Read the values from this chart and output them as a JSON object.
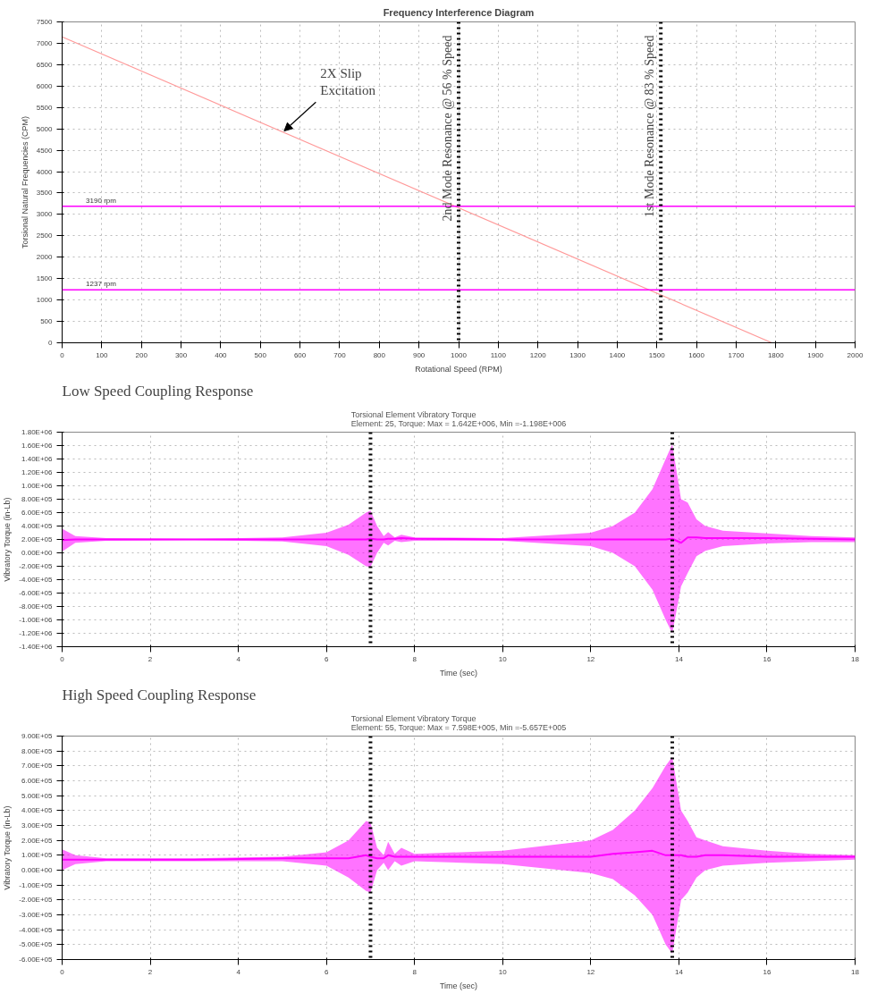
{
  "chart_data": [
    {
      "type": "line",
      "title": "Frequency Interference Diagram",
      "xlabel": "Rotational Speed (RPM)",
      "ylabel": "Torsional Natural Frequencies (CPM)",
      "series": [
        {
          "color": "#ff9999",
          "x": [
            0,
            1790
          ],
          "values": [
            7150,
            0
          ]
        }
      ],
      "xlim": [
        0,
        2000
      ],
      "ylim": [
        0,
        7500
      ],
      "xticks": [
        0,
        100,
        200,
        300,
        400,
        500,
        600,
        700,
        800,
        900,
        1000,
        1100,
        1200,
        1300,
        1400,
        1500,
        1600,
        1700,
        1800,
        1900,
        2000
      ],
      "yticks": [
        0,
        500,
        1000,
        1500,
        2000,
        2500,
        3000,
        3500,
        4000,
        4500,
        5000,
        5500,
        6000,
        6500,
        7000,
        7500
      ],
      "ref_lines": [
        {
          "axis": "y",
          "value": 3190,
          "label": "3190 rpm",
          "color": "#ff00ff"
        },
        {
          "axis": "y",
          "value": 1237,
          "label": "1237 rpm",
          "color": "#ff00ff"
        },
        {
          "axis": "x",
          "value": 1000,
          "label": "2nd Mode Resonance @ 56 % Speed",
          "color": "#000000",
          "line_style": "dotted"
        },
        {
          "axis": "x",
          "value": 1510,
          "label": "1st Mode Resonance @ 83 % Speed",
          "color": "#000000",
          "line_style": "dotted"
        }
      ],
      "annotations": [
        {
          "text": "2X Slip\nExcitation",
          "x": 560,
          "y": 4950
        }
      ],
      "grid": true
    },
    {
      "type": "line",
      "title": "Low Speed Coupling Response",
      "subtitle": "Torsional Element Vibratory Torque\nElement: 25, Torque: Max = 1.642E+006, Min =-1.198E+006",
      "xlabel": "Time (sec)",
      "ylabel": "Vibratory Torque (in-Lb)",
      "series": [
        {
          "color": "#ff00ff",
          "x": [
            0,
            0.3,
            1,
            3,
            5,
            6,
            6.5,
            6.9,
            7.0,
            7.15,
            7.3,
            7.4,
            7.55,
            7.7,
            8,
            10,
            12,
            12.5,
            13,
            13.4,
            13.7,
            13.85,
            14.05,
            14.2,
            14.4,
            14.6,
            15,
            16,
            17,
            18
          ],
          "upper": [
            360000,
            250000,
            220000,
            210000,
            230000,
            300000,
            420000,
            600000,
            630000,
            400000,
            250000,
            310000,
            230000,
            270000,
            230000,
            220000,
            300000,
            400000,
            600000,
            950000,
            1400000,
            1620000,
            800000,
            750000,
            500000,
            400000,
            330000,
            290000,
            250000,
            230000
          ],
          "lower": [
            20000,
            150000,
            180000,
            190000,
            170000,
            100000,
            -30000,
            -200000,
            -210000,
            0,
            150000,
            110000,
            180000,
            160000,
            180000,
            180000,
            100000,
            0,
            -200000,
            -550000,
            -1000000,
            -1200000,
            -500000,
            -300000,
            -50000,
            30000,
            100000,
            140000,
            160000,
            160000
          ],
          "values": [
            190000,
            200000,
            200000,
            200000,
            200000,
            200000,
            200000,
            200000,
            210000,
            200000,
            200000,
            210000,
            210000,
            220000,
            210000,
            200000,
            200000,
            200000,
            200000,
            200000,
            200000,
            210000,
            150000,
            230000,
            230000,
            220000,
            220000,
            220000,
            210000,
            200000
          ]
        }
      ],
      "xlim": [
        0,
        18
      ],
      "ylim": [
        -1400000,
        1800000
      ],
      "xticks": [
        0,
        2,
        4,
        6,
        8,
        10,
        12,
        14,
        16,
        18
      ],
      "yticks": [
        {
          "value": -1400000,
          "label": "-1.40E+06"
        },
        {
          "value": -1200000,
          "label": "-1.20E+06"
        },
        {
          "value": -1000000,
          "label": "-1.00E+06"
        },
        {
          "value": -800000,
          "label": "-8.00E+05"
        },
        {
          "value": -600000,
          "label": "-6.00E+05"
        },
        {
          "value": -400000,
          "label": "-4.00E+05"
        },
        {
          "value": -200000,
          "label": "-2.00E+05"
        },
        {
          "value": 0,
          "label": "0.00E+00"
        },
        {
          "value": 200000,
          "label": "2.00E+05"
        },
        {
          "value": 400000,
          "label": "4.00E+05"
        },
        {
          "value": 600000,
          "label": "6.00E+05"
        },
        {
          "value": 800000,
          "label": "8.00E+05"
        },
        {
          "value": 1000000,
          "label": "1.00E+06"
        },
        {
          "value": 1200000,
          "label": "1.20E+06"
        },
        {
          "value": 1400000,
          "label": "1.40E+06"
        },
        {
          "value": 1600000,
          "label": "1.60E+06"
        },
        {
          "value": 1800000,
          "label": "1.80E+06"
        }
      ],
      "ref_lines": [
        {
          "axis": "x",
          "value": 7.0,
          "label": null,
          "color": "#000000",
          "line_style": "dotted"
        },
        {
          "axis": "x",
          "value": 13.85,
          "label": null,
          "color": "#000000",
          "line_style": "dotted"
        }
      ],
      "grid": true
    },
    {
      "type": "line",
      "title": "High Speed Coupling Response",
      "subtitle": "Torsional Element Vibratory Torque\nElement: 55, Torque: Max = 7.598E+005, Min =-5.657E+005",
      "xlabel": "Time (sec)",
      "ylabel": "Vibratory Torque (in-Lb)",
      "series": [
        {
          "color": "#ff00ff",
          "x": [
            0,
            0.3,
            1,
            3,
            5,
            6,
            6.5,
            6.9,
            7.0,
            7.15,
            7.3,
            7.4,
            7.55,
            7.7,
            8,
            10,
            12,
            12.5,
            13,
            13.4,
            13.7,
            13.85,
            14.05,
            14.2,
            14.4,
            14.6,
            15,
            16,
            17,
            18
          ],
          "upper": [
            140000,
            100000,
            80000,
            80000,
            90000,
            120000,
            200000,
            330000,
            320000,
            150000,
            100000,
            190000,
            110000,
            150000,
            110000,
            130000,
            200000,
            270000,
            400000,
            550000,
            700000,
            760000,
            400000,
            330000,
            220000,
            200000,
            160000,
            130000,
            110000,
            100000
          ],
          "lower": [
            0,
            40000,
            60000,
            60000,
            60000,
            30000,
            -50000,
            -140000,
            -150000,
            0,
            50000,
            0,
            60000,
            30000,
            60000,
            40000,
            -20000,
            -60000,
            -170000,
            -300000,
            -500000,
            -560000,
            -200000,
            -150000,
            -50000,
            0,
            30000,
            50000,
            60000,
            70000
          ],
          "values": [
            70000,
            70000,
            70000,
            70000,
            80000,
            80000,
            80000,
            100000,
            90000,
            80000,
            80000,
            100000,
            90000,
            90000,
            90000,
            90000,
            90000,
            110000,
            120000,
            130000,
            100000,
            100000,
            100000,
            90000,
            90000,
            100000,
            100000,
            90000,
            90000,
            90000
          ]
        }
      ],
      "xlim": [
        0,
        18
      ],
      "ylim": [
        -600000,
        900000
      ],
      "xticks": [
        0,
        2,
        4,
        6,
        8,
        10,
        12,
        14,
        16,
        18
      ],
      "yticks": [
        {
          "value": -600000,
          "label": "-6.00E+05"
        },
        {
          "value": -500000,
          "label": "-5.00E+05"
        },
        {
          "value": -400000,
          "label": "-4.00E+05"
        },
        {
          "value": -300000,
          "label": "-3.00E+05"
        },
        {
          "value": -200000,
          "label": "-2.00E+05"
        },
        {
          "value": -100000,
          "label": "-1.00E+05"
        },
        {
          "value": 0,
          "label": "0.00E+00"
        },
        {
          "value": 100000,
          "label": "1.00E+05"
        },
        {
          "value": 200000,
          "label": "2.00E+05"
        },
        {
          "value": 300000,
          "label": "3.00E+05"
        },
        {
          "value": 400000,
          "label": "4.00E+05"
        },
        {
          "value": 500000,
          "label": "5.00E+05"
        },
        {
          "value": 600000,
          "label": "6.00E+05"
        },
        {
          "value": 700000,
          "label": "7.00E+05"
        },
        {
          "value": 800000,
          "label": "8.00E+05"
        },
        {
          "value": 900000,
          "label": "9.00E+05"
        }
      ],
      "ref_lines": [
        {
          "axis": "x",
          "value": 7.0,
          "label": null,
          "color": "#000000",
          "line_style": "dotted"
        },
        {
          "axis": "x",
          "value": 13.85,
          "label": null,
          "color": "#000000",
          "line_style": "dotted"
        }
      ],
      "grid": true
    }
  ]
}
